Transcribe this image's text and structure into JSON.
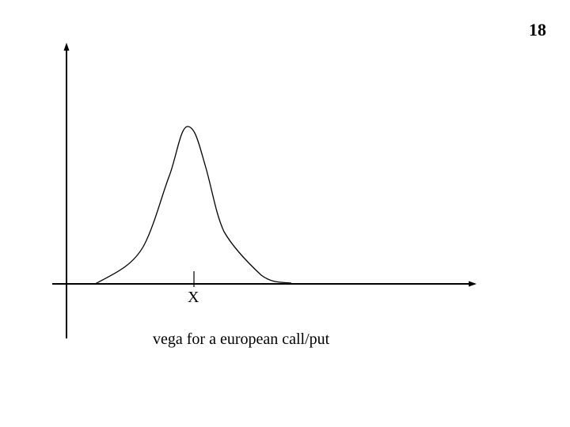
{
  "slide": {
    "number": "18"
  },
  "diagram": {
    "marker_label": "X",
    "caption": "vega for a european call/put",
    "stroke_color": "#000000"
  }
}
